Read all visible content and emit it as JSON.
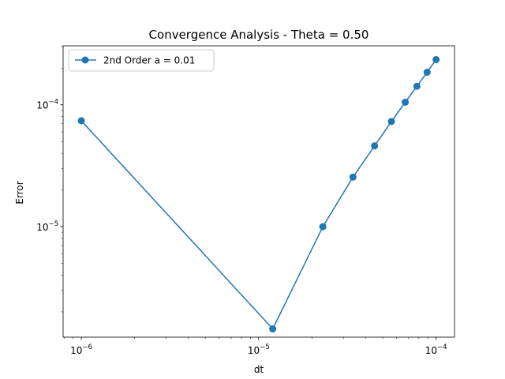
{
  "chart_data": {
    "type": "line",
    "title": "Convergence Analysis - Theta = 0.50",
    "xlabel": "dt",
    "ylabel": "Error",
    "xscale": "log",
    "yscale": "log",
    "xlim": [
      7.9e-07,
      0.000127
    ],
    "ylim": [
      1.24e-06,
      0.000305
    ],
    "grid": false,
    "legend_position": "top-left",
    "x_ticks": [
      {
        "value": 1e-06,
        "base": "10",
        "exp": "−6"
      },
      {
        "value": 1e-05,
        "base": "10",
        "exp": "−5"
      },
      {
        "value": 0.0001,
        "base": "10",
        "exp": "−4"
      }
    ],
    "y_ticks": [
      {
        "value": 1e-05,
        "base": "10",
        "exp": "−5"
      },
      {
        "value": 0.0001,
        "base": "10",
        "exp": "−4"
      }
    ],
    "series": [
      {
        "name": "2nd Order a = 0.01",
        "color": "#1f77b4",
        "marker": "circle",
        "x": [
          1e-06,
          1.2e-05,
          2.3e-05,
          3.4e-05,
          4.5e-05,
          5.6e-05,
          6.7e-05,
          7.8e-05,
          8.9e-05,
          0.0001
        ],
        "y": [
          7.4e-05,
          1.45e-06,
          1e-05,
          2.55e-05,
          4.6e-05,
          7.3e-05,
          0.000105,
          0.000142,
          0.000185,
          0.000235
        ]
      }
    ]
  }
}
